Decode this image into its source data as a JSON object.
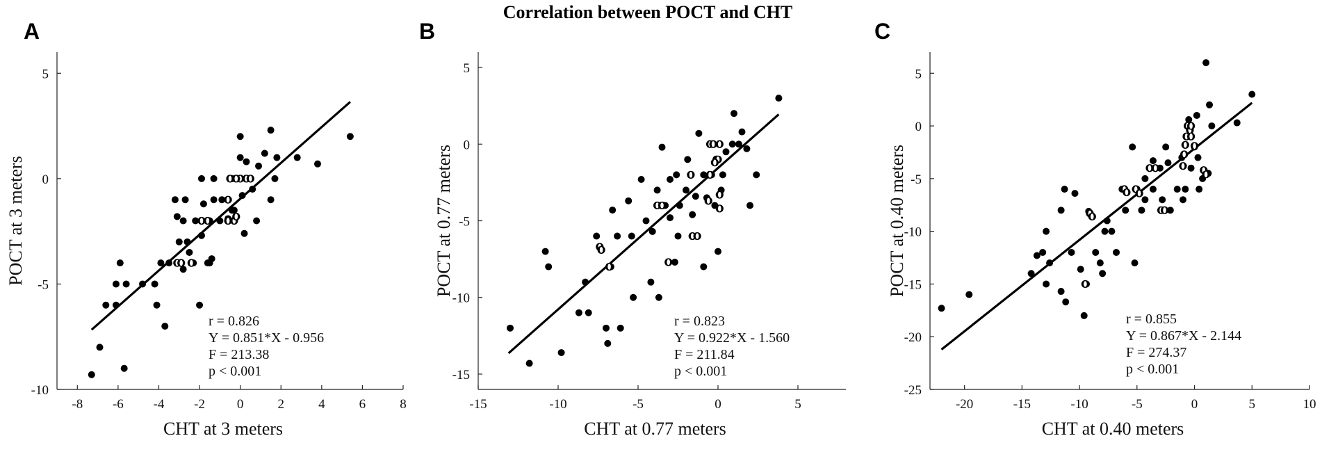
{
  "figure": {
    "title": "Correlation between POCT and CHT"
  },
  "chart_data": [
    {
      "type": "scatter",
      "panel": "A",
      "title": "",
      "xlabel": "CHT at 3 meters",
      "ylabel": "POCT at 3 meters",
      "xlim": [
        -9,
        8
      ],
      "ylim": [
        -10,
        6
      ],
      "xticks": [
        -8,
        -6,
        -4,
        -2,
        0,
        2,
        4,
        6,
        8
      ],
      "yticks": [
        -10,
        -5,
        0,
        5
      ],
      "fit": {
        "slope": 0.851,
        "intercept": -0.956,
        "x_range": [
          -7.3,
          5.4
        ]
      },
      "stats": [
        "r = 0.826",
        "Y = 0.851*X - 0.956",
        "F = 213.38",
        "p < 0.001"
      ],
      "points": [
        [
          -7.3,
          -9.3
        ],
        [
          -6.9,
          -8
        ],
        [
          -6.6,
          -6
        ],
        [
          -6.1,
          -5
        ],
        [
          -6.1,
          -6
        ],
        [
          -5.9,
          -4
        ],
        [
          -5.6,
          -5
        ],
        [
          -5.7,
          -9
        ],
        [
          -4.8,
          -5
        ],
        [
          -4.2,
          -5
        ],
        [
          -4.1,
          -6
        ],
        [
          -3.7,
          -7
        ],
        [
          -3.9,
          -4
        ],
        [
          -3.5,
          -4
        ],
        [
          -3.2,
          -1
        ],
        [
          -3.1,
          -1.8
        ],
        [
          -2.7,
          -1
        ],
        [
          -3,
          -3
        ],
        [
          -2.8,
          -4.3
        ],
        [
          -2.6,
          -3
        ],
        [
          -2.5,
          -3.5
        ],
        [
          -2.3,
          -4
        ],
        [
          -2,
          -6
        ],
        [
          -1.9,
          -2.7
        ],
        [
          -1.8,
          -1.2
        ],
        [
          -1.9,
          0
        ],
        [
          -1.6,
          -4
        ],
        [
          -1.5,
          -2
        ],
        [
          -1.3,
          -1
        ],
        [
          -1.4,
          -3.8
        ],
        [
          -1,
          -2
        ],
        [
          -0.9,
          -1
        ],
        [
          -1.3,
          0
        ],
        [
          -0.6,
          -1.9
        ],
        [
          -0.3,
          -1.5
        ],
        [
          -0.4,
          0
        ],
        [
          0,
          1
        ],
        [
          0,
          2
        ],
        [
          0.1,
          -0.8
        ],
        [
          0.2,
          -2.6
        ],
        [
          0.3,
          0.8
        ],
        [
          0.6,
          -0.5
        ],
        [
          0.8,
          -2
        ],
        [
          0.9,
          0.6
        ],
        [
          1.2,
          1.2
        ],
        [
          1.5,
          2.3
        ],
        [
          1.7,
          0
        ],
        [
          1.5,
          -1
        ],
        [
          1.8,
          1
        ],
        [
          2.8,
          1
        ],
        [
          3.8,
          0.7
        ],
        [
          5.4,
          2
        ],
        [
          -2.8,
          -2
        ],
        [
          -2.2,
          -2
        ],
        [
          -1.5,
          -4
        ],
        [
          -0.4,
          -1.5
        ]
      ],
      "open_points": [
        [
          -3.1,
          -4
        ],
        [
          -2.9,
          -4
        ],
        [
          -2.4,
          -4
        ],
        [
          -1.6,
          -2
        ],
        [
          -1.9,
          -2
        ],
        [
          -0.6,
          -1
        ],
        [
          -0.6,
          -2
        ],
        [
          -0.3,
          -2
        ],
        [
          -0.2,
          -1.8
        ],
        [
          -0.5,
          0
        ],
        [
          0,
          0
        ],
        [
          0.3,
          0
        ],
        [
          0.5,
          0
        ],
        [
          -0.2,
          0
        ]
      ]
    },
    {
      "type": "scatter",
      "panel": "B",
      "title": "",
      "xlabel": "CHT at 0.77 meters",
      "ylabel": "POCT at 0.77 meters",
      "xlim": [
        -15,
        8
      ],
      "ylim": [
        -16,
        6
      ],
      "xticks": [
        -15,
        -10,
        -5,
        0,
        5
      ],
      "yticks": [
        -15,
        -10,
        -5,
        0,
        5
      ],
      "fit": {
        "slope": 0.922,
        "intercept": -1.56,
        "x_range": [
          -13.1,
          3.8
        ]
      },
      "stats": [
        "r = 0.823",
        "Y = 0.922*X - 1.560",
        "F = 211.84",
        "p < 0.001"
      ],
      "points": [
        [
          -13,
          -12
        ],
        [
          -11.8,
          -14.3
        ],
        [
          -10.8,
          -7
        ],
        [
          -10.6,
          -8
        ],
        [
          -9.8,
          -13.6
        ],
        [
          -8.7,
          -11
        ],
        [
          -8.3,
          -9
        ],
        [
          -8.1,
          -11
        ],
        [
          -7.6,
          -6
        ],
        [
          -7,
          -12
        ],
        [
          -6.9,
          -13
        ],
        [
          -6.7,
          -8
        ],
        [
          -6.6,
          -4.3
        ],
        [
          -6.1,
          -12
        ],
        [
          -6.3,
          -6
        ],
        [
          -5.6,
          -3.7
        ],
        [
          -5.4,
          -6
        ],
        [
          -5.3,
          -10
        ],
        [
          -4.8,
          -2.3
        ],
        [
          -4.5,
          -5
        ],
        [
          -4.2,
          -9
        ],
        [
          -4.1,
          -5.7
        ],
        [
          -3.8,
          -3
        ],
        [
          -3.7,
          -10
        ],
        [
          -3.5,
          -0.2
        ],
        [
          -3.3,
          -4
        ],
        [
          -3,
          -2.3
        ],
        [
          -3,
          -4.8
        ],
        [
          -2.7,
          -7.7
        ],
        [
          -2.5,
          -6
        ],
        [
          -2.4,
          -4
        ],
        [
          -2,
          -3
        ],
        [
          -1.9,
          -1
        ],
        [
          -1.6,
          -4.6
        ],
        [
          -1.4,
          -3.4
        ],
        [
          -1.2,
          0.7
        ],
        [
          -0.9,
          -2
        ],
        [
          -0.9,
          -8
        ],
        [
          -0.7,
          -3.5
        ],
        [
          -0.4,
          -2
        ],
        [
          -0.2,
          -4
        ],
        [
          0,
          -7
        ],
        [
          0.2,
          -3
        ],
        [
          0.3,
          -2
        ],
        [
          0.5,
          -0.5
        ],
        [
          0.9,
          0
        ],
        [
          1,
          2
        ],
        [
          1.3,
          0
        ],
        [
          1.5,
          0.8
        ],
        [
          1.8,
          -0.3
        ],
        [
          2,
          -4
        ],
        [
          2.4,
          -2
        ],
        [
          3.8,
          3
        ],
        [
          -2.6,
          -2
        ]
      ],
      "open_points": [
        [
          -7.4,
          -6.7
        ],
        [
          -7.3,
          -6.9
        ],
        [
          -6.8,
          -8
        ],
        [
          -3.8,
          -4
        ],
        [
          -3.5,
          -4
        ],
        [
          -3.1,
          -7.7
        ],
        [
          -1.7,
          -2
        ],
        [
          -1.6,
          -6
        ],
        [
          -1.3,
          -6
        ],
        [
          -0.6,
          -3.7
        ],
        [
          -0.5,
          -2
        ],
        [
          -0.5,
          0
        ],
        [
          -0.3,
          0
        ],
        [
          -0.1,
          -1
        ],
        [
          0,
          -1
        ],
        [
          0.1,
          0
        ],
        [
          -0.2,
          -1.2
        ],
        [
          0.1,
          -3.3
        ],
        [
          0.1,
          -4.2
        ]
      ]
    },
    {
      "type": "scatter",
      "panel": "C",
      "title": "",
      "xlabel": "CHT at 0.40 meters",
      "ylabel": "POCT at 0.40 meters",
      "xlim": [
        -23,
        10
      ],
      "ylim": [
        -25,
        7
      ],
      "xticks": [
        -20,
        -15,
        -10,
        -5,
        0,
        5,
        10
      ],
      "yticks": [
        -25,
        -20,
        -15,
        -10,
        -5,
        0,
        5
      ],
      "fit": {
        "slope": 0.867,
        "intercept": -2.144,
        "x_range": [
          -22,
          5
        ]
      },
      "stats": [
        "r = 0.855",
        "Y = 0.867*X - 2.144",
        "F = 274.37",
        "p < 0.001"
      ],
      "points": [
        [
          -22,
          -17.3
        ],
        [
          -19.6,
          -16
        ],
        [
          -14.2,
          -14
        ],
        [
          -13.7,
          -12.3
        ],
        [
          -13.2,
          -12
        ],
        [
          -12.9,
          -10
        ],
        [
          -12.9,
          -15
        ],
        [
          -12.6,
          -13
        ],
        [
          -11.6,
          -15.7
        ],
        [
          -11.6,
          -8
        ],
        [
          -11.2,
          -16.7
        ],
        [
          -11.3,
          -6
        ],
        [
          -10.7,
          -12
        ],
        [
          -10.4,
          -6.4
        ],
        [
          -9.9,
          -13.6
        ],
        [
          -9.6,
          -18
        ],
        [
          -9.4,
          -15
        ],
        [
          -9.2,
          -8.1
        ],
        [
          -8.6,
          -12
        ],
        [
          -8.2,
          -13
        ],
        [
          -8,
          -14
        ],
        [
          -7.8,
          -10
        ],
        [
          -7.6,
          -9
        ],
        [
          -7.2,
          -10
        ],
        [
          -6.8,
          -12
        ],
        [
          -6.3,
          -6
        ],
        [
          -6,
          -8
        ],
        [
          -5.4,
          -2
        ],
        [
          -5.2,
          -13
        ],
        [
          -5,
          -6
        ],
        [
          -4.6,
          -8
        ],
        [
          -4.3,
          -5
        ],
        [
          -4.3,
          -7
        ],
        [
          -3.6,
          -3.3
        ],
        [
          -3.6,
          -6
        ],
        [
          -3,
          -4
        ],
        [
          -2.8,
          -7
        ],
        [
          -2.5,
          -2
        ],
        [
          -2.3,
          -3.5
        ],
        [
          -2.1,
          -8
        ],
        [
          -1.5,
          -6
        ],
        [
          -1.1,
          -3
        ],
        [
          -0.8,
          -6
        ],
        [
          -0.5,
          0.6
        ],
        [
          -0.3,
          -4
        ],
        [
          0,
          -2
        ],
        [
          0.2,
          1
        ],
        [
          0.3,
          -3
        ],
        [
          0.4,
          -6
        ],
        [
          0.7,
          -5
        ],
        [
          1,
          6
        ],
        [
          1.2,
          -4.5
        ],
        [
          1.3,
          2
        ],
        [
          1.5,
          0
        ],
        [
          3.7,
          0.3
        ],
        [
          5,
          3
        ],
        [
          -1,
          -7
        ]
      ],
      "open_points": [
        [
          -9.5,
          -15
        ],
        [
          -9.1,
          -8.3
        ],
        [
          -8.9,
          -8.6
        ],
        [
          -6.1,
          -6
        ],
        [
          -5.9,
          -6.3
        ],
        [
          -5.1,
          -6
        ],
        [
          -4.8,
          -6.4
        ],
        [
          -3.9,
          -4
        ],
        [
          -3.4,
          -4
        ],
        [
          -2.9,
          -8
        ],
        [
          -2.6,
          -8
        ],
        [
          -0.9,
          -2.7
        ],
        [
          -0.8,
          -1.8
        ],
        [
          -0.7,
          -1
        ],
        [
          -0.6,
          0
        ],
        [
          -0.4,
          -0.4
        ],
        [
          -0.3,
          -1
        ],
        [
          -0.3,
          0
        ],
        [
          0,
          -1.9
        ],
        [
          -1,
          -3.8
        ],
        [
          0.8,
          -4.2
        ],
        [
          1,
          -4.6
        ]
      ]
    }
  ]
}
